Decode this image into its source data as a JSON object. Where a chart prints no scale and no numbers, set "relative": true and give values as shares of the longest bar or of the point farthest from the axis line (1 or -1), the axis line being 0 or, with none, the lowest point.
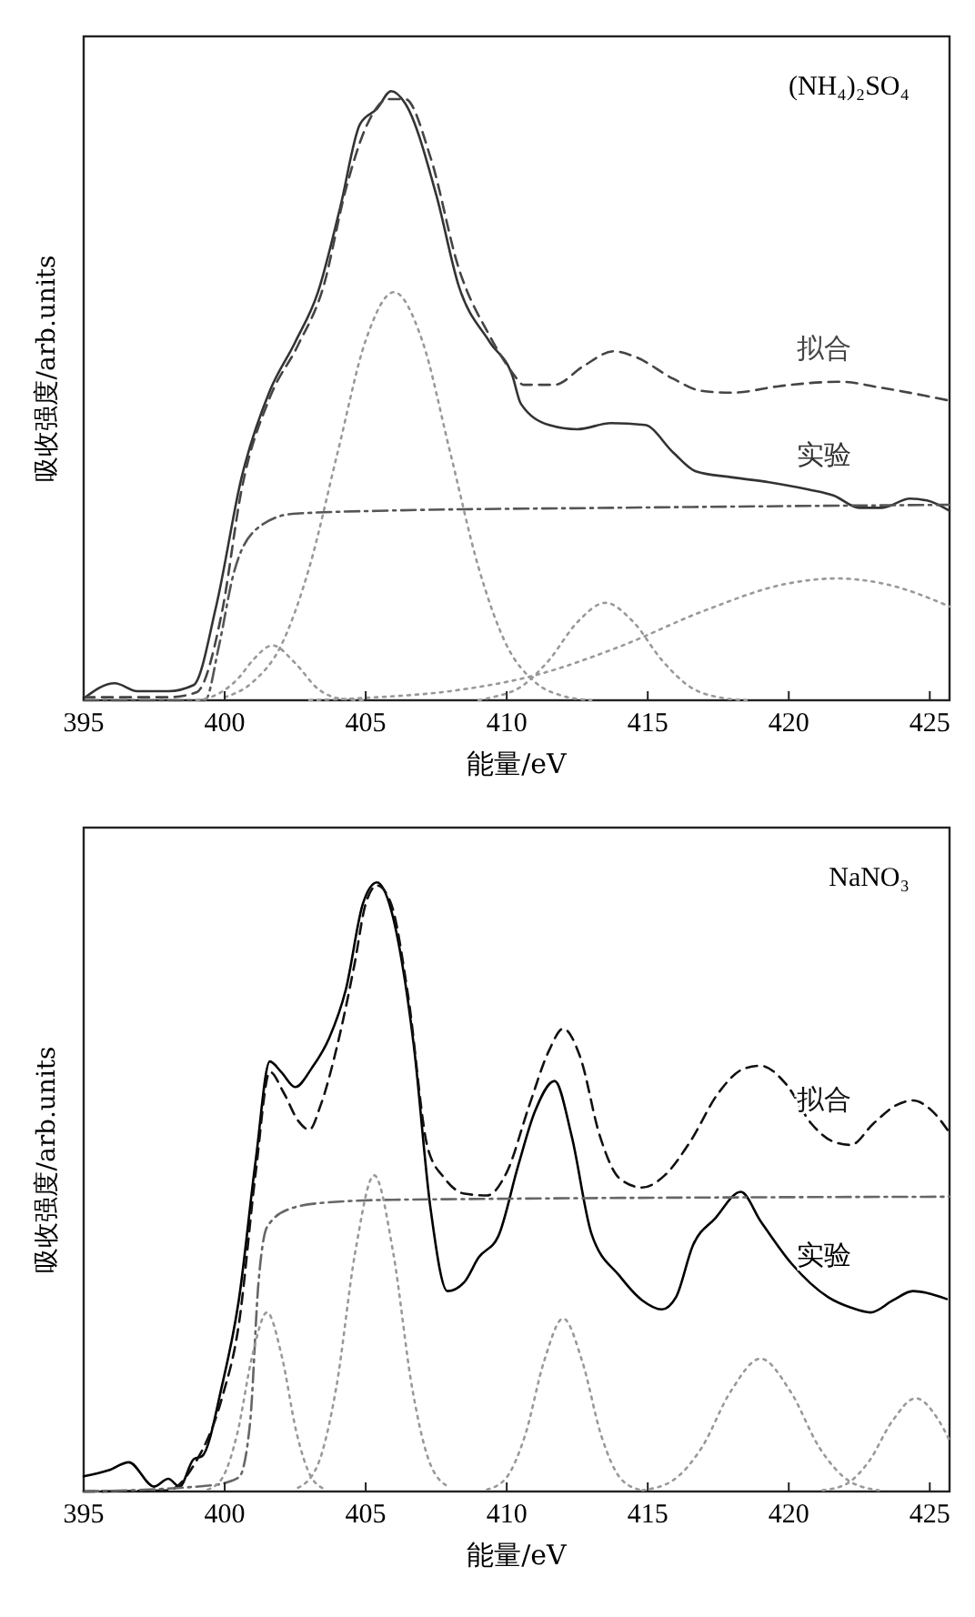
{
  "chart_data": [
    {
      "type": "line",
      "title": "(NH₄)₂SO₄",
      "xlabel": "能量/eV",
      "ylabel": "吸收强度/arb.units",
      "relative": true,
      "xlim": [
        395,
        425.7
      ],
      "xticks": [
        395,
        400,
        405,
        410,
        415,
        420,
        425
      ],
      "grid": false,
      "marker": "none",
      "series": [
        {
          "name": "实验",
          "color": "#333333",
          "line_style": "solid",
          "x": [
            395,
            396.1,
            396.9,
            398,
            398.9,
            399.7,
            400.6,
            401.6,
            402.5,
            403.3,
            404.1,
            404.8,
            405.4,
            405.9,
            406.4,
            407.5,
            408.3,
            409.4,
            410.2,
            410.5,
            411.5,
            412.5,
            413.7,
            414.9,
            415.9,
            416.7,
            418,
            419.3,
            420.7,
            421.6,
            422.5,
            423.3,
            424.3,
            424.9,
            425.7
          ],
          "values": [
            0.003,
            0.028,
            0.015,
            0.015,
            0.025,
            0.155,
            0.366,
            0.508,
            0.588,
            0.669,
            0.81,
            0.946,
            0.971,
            1,
            0.98,
            0.83,
            0.68,
            0.588,
            0.533,
            0.487,
            0.452,
            0.445,
            0.455,
            0.452,
            0.407,
            0.376,
            0.366,
            0.358,
            0.346,
            0.336,
            0.316,
            0.316,
            0.331,
            0.328,
            0.311
          ]
        },
        {
          "name": "拟合",
          "color": "#444444",
          "line_style": "dashed",
          "x": [
            395,
            398,
            399,
            399.9,
            400.6,
            401.6,
            402.6,
            403.5,
            404.3,
            405,
            405.8,
            406.4,
            407.3,
            408.3,
            409.4,
            410.2,
            410.6,
            411.7,
            412.7,
            413.8,
            414.6,
            415.9,
            416.9,
            418,
            419.7,
            421.8,
            423.3,
            425.7
          ],
          "values": [
            0.005,
            0.005,
            0.013,
            0.144,
            0.346,
            0.497,
            0.583,
            0.679,
            0.84,
            0.94,
            0.987,
            0.987,
            0.891,
            0.709,
            0.598,
            0.538,
            0.518,
            0.518,
            0.548,
            0.573,
            0.563,
            0.528,
            0.508,
            0.505,
            0.516,
            0.523,
            0.513,
            0.492
          ]
        },
        {
          "color": "#555555",
          "line_style": "dashdot",
          "x": [
            395,
            399.3,
            399.8,
            400.3,
            401.1,
            402.4,
            405.4,
            413.8,
            425.7
          ],
          "values": [
            0,
            0,
            0.09,
            0.205,
            0.28,
            0.306,
            0.311,
            0.316,
            0.321
          ]
        },
        {
          "color": "#999999",
          "line_style": "dotted",
          "x": [
            399,
            399.5,
            400.5,
            401,
            401.7,
            402.5,
            403.3,
            404.2,
            405
          ],
          "values": [
            0,
            0.005,
            0.037,
            0.066,
            0.09,
            0.061,
            0.019,
            0.002,
            0
          ]
        },
        {
          "color": "#999999",
          "line_style": "dotted",
          "x": [
            400,
            401,
            402,
            403,
            404,
            405,
            406,
            407,
            408,
            409,
            410,
            411,
            412,
            413
          ],
          "values": [
            0.005,
            0.03,
            0.09,
            0.218,
            0.406,
            0.591,
            0.67,
            0.591,
            0.406,
            0.218,
            0.09,
            0.03,
            0.007,
            0
          ]
        },
        {
          "color": "#999999",
          "line_style": "dotted",
          "x": [
            409,
            409.5,
            410.5,
            411.5,
            412.5,
            413.5,
            414.5,
            415.5,
            416.5,
            417.5,
            418.5
          ],
          "values": [
            0,
            0.005,
            0.022,
            0.066,
            0.128,
            0.16,
            0.128,
            0.066,
            0.022,
            0.005,
            0
          ]
        },
        {
          "color": "#999999",
          "line_style": "dotted",
          "x": [
            403,
            405,
            408,
            411,
            414,
            417,
            420,
            421.7,
            423.5,
            425.7
          ],
          "values": [
            0,
            0.004,
            0.015,
            0.041,
            0.088,
            0.147,
            0.192,
            0.2,
            0.19,
            0.154
          ]
        }
      ]
    },
    {
      "type": "line",
      "title": "NaNO₃",
      "xlabel": "能量/eV",
      "ylabel": "吸收强度/arb.units",
      "relative": true,
      "xlim": [
        395,
        425.7
      ],
      "xticks": [
        395,
        400,
        405,
        410,
        415,
        420,
        425
      ],
      "grid": false,
      "marker": "none",
      "series": [
        {
          "name": "实验",
          "color": "#000000",
          "line_style": "solid",
          "x": [
            395,
            395.9,
            396.6,
            397.5,
            398,
            398.4,
            398.9,
            399.2,
            399.9,
            400.5,
            401.1,
            401.6,
            402,
            402.5,
            403.1,
            403.7,
            404.3,
            404.9,
            405.4,
            405.9,
            406.3,
            406.7,
            407.3,
            407.9,
            408.5,
            409,
            409.7,
            410.4,
            411,
            411.7,
            412.3,
            413,
            414,
            414.8,
            415.5,
            416,
            416.6,
            417.4,
            418.3,
            419,
            420.1,
            421.4,
            422.2,
            422.9,
            423.7,
            424.4,
            424.9,
            425.6
          ],
          "values": [
            0.025,
            0.035,
            0.048,
            0.008,
            0.021,
            0.008,
            0.053,
            0.058,
            0.173,
            0.314,
            0.544,
            0.706,
            0.689,
            0.664,
            0.696,
            0.744,
            0.825,
            0.965,
            1,
            0.955,
            0.865,
            0.734,
            0.464,
            0.329,
            0.344,
            0.384,
            0.419,
            0.534,
            0.624,
            0.674,
            0.584,
            0.424,
            0.354,
            0.314,
            0.299,
            0.319,
            0.404,
            0.449,
            0.492,
            0.444,
            0.374,
            0.319,
            0.302,
            0.294,
            0.314,
            0.329,
            0.326,
            0.316
          ]
        },
        {
          "name": "拟合",
          "color": "#111111",
          "line_style": "dashed",
          "x": [
            395,
            398,
            398.9,
            399.9,
            400.5,
            401.1,
            401.6,
            402.1,
            402.6,
            403,
            403.4,
            404,
            404.6,
            405,
            405.4,
            405.9,
            406.5,
            407.2,
            407.8,
            408.5,
            409.3,
            410,
            410.8,
            411.5,
            412,
            412.6,
            413.3,
            414,
            414.8,
            415.6,
            416.5,
            417.5,
            418.4,
            419,
            419.9,
            420.8,
            421.6,
            422.2,
            423,
            423.8,
            424.4,
            425.1,
            425.7
          ],
          "values": [
            0,
            0.002,
            0.043,
            0.153,
            0.274,
            0.524,
            0.689,
            0.654,
            0.609,
            0.594,
            0.634,
            0.734,
            0.865,
            0.965,
            0.995,
            0.965,
            0.815,
            0.564,
            0.514,
            0.489,
            0.486,
            0.524,
            0.634,
            0.724,
            0.76,
            0.714,
            0.584,
            0.514,
            0.499,
            0.519,
            0.574,
            0.654,
            0.694,
            0.699,
            0.669,
            0.604,
            0.574,
            0.569,
            0.604,
            0.634,
            0.642,
            0.624,
            0.589
          ]
        },
        {
          "color": "#666666",
          "line_style": "dashdot",
          "x": [
            395,
            399.5,
            400.5,
            400.9,
            401.2,
            401.5,
            402.3,
            403.5,
            406,
            425.7
          ],
          "values": [
            0,
            0.01,
            0.023,
            0.113,
            0.344,
            0.434,
            0.464,
            0.474,
            0.479,
            0.484
          ]
        },
        {
          "color": "#999999",
          "line_style": "dotted",
          "x": [
            399.4,
            399.925,
            400.45,
            400.975,
            401.5,
            402.025,
            402.55,
            403.075,
            403.6
          ],
          "values": [
            0.003,
            0.023,
            0.096,
            0.222,
            0.294,
            0.222,
            0.096,
            0.023,
            0.003
          ]
        },
        {
          "color": "#999999",
          "line_style": "dotted",
          "x": [
            402.6,
            403.275,
            403.95,
            404.625,
            405.3,
            405.975,
            406.65,
            407.325,
            408
          ],
          "values": [
            0.006,
            0.041,
            0.169,
            0.392,
            0.519,
            0.392,
            0.169,
            0.041,
            0.006
          ]
        },
        {
          "color": "#999999",
          "line_style": "dotted",
          "x": [
            409.3,
            409.975,
            410.65,
            411.325,
            412,
            412.675,
            413.35,
            414.025,
            414.7
          ],
          "values": [
            0.003,
            0.022,
            0.092,
            0.214,
            0.284,
            0.214,
            0.092,
            0.022,
            0.003
          ]
        },
        {
          "color": "#999999",
          "line_style": "dotted",
          "x": [
            414.8,
            415.85,
            416.9,
            417.95,
            419,
            420.05,
            421.1,
            422.15,
            423.2
          ],
          "values": [
            0.002,
            0.017,
            0.071,
            0.165,
            0.218,
            0.165,
            0.071,
            0.017,
            0.002
          ]
        },
        {
          "color": "#999999",
          "line_style": "dotted",
          "x": [
            421.2,
            422.025,
            422.85,
            423.675,
            424.5,
            425.325,
            425.7
          ],
          "values": [
            0.002,
            0.012,
            0.05,
            0.116,
            0.153,
            0.116,
            0.084
          ]
        }
      ]
    }
  ]
}
